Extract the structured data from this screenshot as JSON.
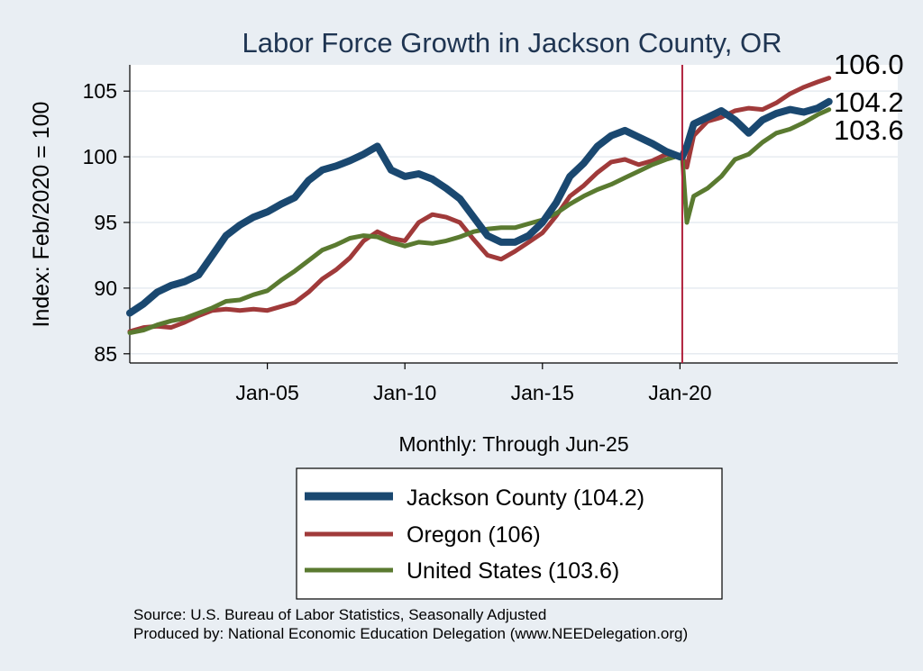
{
  "chart_data": {
    "type": "line",
    "title": "Labor Force Growth in Jackson  County, OR",
    "ylabel": "Index: Feb/2020 = 100",
    "xlabel": "Monthly: Through Jun-25",
    "xlim": [
      "Jan-00",
      "Dec-27"
    ],
    "ylim": [
      84.3,
      107
    ],
    "y_ticks": [
      85,
      90,
      95,
      100,
      105
    ],
    "x_ticks": [
      "Jan-05",
      "Jan-10",
      "Jan-15",
      "Jan-20"
    ],
    "grid": "horizontal",
    "reference_line": {
      "date": "Feb-20",
      "color": "#b0213d"
    },
    "legend_position": "bottom",
    "end_labels": [
      "106.0",
      "104.2",
      "103.6"
    ],
    "series": [
      {
        "name": "Jackson  County (104.2)",
        "color": "#1a4870",
        "points": [
          [
            "Jan-00",
            88.1
          ],
          [
            "Jul-00",
            88.8
          ],
          [
            "Jan-01",
            89.7
          ],
          [
            "Jul-01",
            90.2
          ],
          [
            "Jan-02",
            90.5
          ],
          [
            "Jul-02",
            91.0
          ],
          [
            "Jan-03",
            92.5
          ],
          [
            "Jul-03",
            94.0
          ],
          [
            "Jan-04",
            94.8
          ],
          [
            "Jul-04",
            95.4
          ],
          [
            "Jan-05",
            95.8
          ],
          [
            "Jul-05",
            96.4
          ],
          [
            "Jan-06",
            96.9
          ],
          [
            "Jul-06",
            98.2
          ],
          [
            "Jan-07",
            99.0
          ],
          [
            "Jul-07",
            99.3
          ],
          [
            "Jan-08",
            99.7
          ],
          [
            "Jul-08",
            100.2
          ],
          [
            "Jan-09",
            100.8
          ],
          [
            "Jul-09",
            99.0
          ],
          [
            "Jan-10",
            98.5
          ],
          [
            "Jul-10",
            98.7
          ],
          [
            "Jan-11",
            98.3
          ],
          [
            "Jul-11",
            97.6
          ],
          [
            "Jan-12",
            96.8
          ],
          [
            "Jul-12",
            95.4
          ],
          [
            "Jan-13",
            94.0
          ],
          [
            "Jul-13",
            93.5
          ],
          [
            "Jan-14",
            93.5
          ],
          [
            "Jul-14",
            94.0
          ],
          [
            "Jan-15",
            95.0
          ],
          [
            "Jul-15",
            96.5
          ],
          [
            "Jan-16",
            98.5
          ],
          [
            "Jul-16",
            99.5
          ],
          [
            "Jan-17",
            100.8
          ],
          [
            "Jul-17",
            101.6
          ],
          [
            "Jan-18",
            102.0
          ],
          [
            "Jul-18",
            101.5
          ],
          [
            "Jan-19",
            101.0
          ],
          [
            "Jul-19",
            100.4
          ],
          [
            "Jan-20",
            100.0
          ],
          [
            "Feb-20",
            100.0
          ],
          [
            "Apr-20",
            100.8
          ],
          [
            "Jul-20",
            102.5
          ],
          [
            "Jan-21",
            103.0
          ],
          [
            "Jul-21",
            103.5
          ],
          [
            "Jan-22",
            102.8
          ],
          [
            "Jul-22",
            101.8
          ],
          [
            "Jan-23",
            102.8
          ],
          [
            "Jul-23",
            103.3
          ],
          [
            "Jan-24",
            103.6
          ],
          [
            "Jul-24",
            103.4
          ],
          [
            "Jan-25",
            103.7
          ],
          [
            "Jun-25",
            104.2
          ]
        ]
      },
      {
        "name": "Oregon (106)",
        "color": "#a03a3a",
        "points": [
          [
            "Jan-00",
            86.7
          ],
          [
            "Jul-00",
            87.0
          ],
          [
            "Jan-01",
            87.1
          ],
          [
            "Jul-01",
            87.0
          ],
          [
            "Jan-02",
            87.4
          ],
          [
            "Jul-02",
            87.9
          ],
          [
            "Jan-03",
            88.3
          ],
          [
            "Jul-03",
            88.4
          ],
          [
            "Jan-04",
            88.3
          ],
          [
            "Jul-04",
            88.4
          ],
          [
            "Jan-05",
            88.3
          ],
          [
            "Jul-05",
            88.6
          ],
          [
            "Jan-06",
            88.9
          ],
          [
            "Jul-06",
            89.7
          ],
          [
            "Jan-07",
            90.7
          ],
          [
            "Jul-07",
            91.4
          ],
          [
            "Jan-08",
            92.3
          ],
          [
            "Jul-08",
            93.6
          ],
          [
            "Jan-09",
            94.3
          ],
          [
            "Jul-09",
            93.8
          ],
          [
            "Jan-10",
            93.6
          ],
          [
            "Jul-10",
            95.0
          ],
          [
            "Jan-11",
            95.6
          ],
          [
            "Jul-11",
            95.4
          ],
          [
            "Jan-12",
            95.0
          ],
          [
            "Jul-12",
            93.7
          ],
          [
            "Jan-13",
            92.5
          ],
          [
            "Jul-13",
            92.2
          ],
          [
            "Jan-14",
            92.8
          ],
          [
            "Jul-14",
            93.5
          ],
          [
            "Jan-15",
            94.2
          ],
          [
            "Jul-15",
            95.5
          ],
          [
            "Jan-16",
            97.0
          ],
          [
            "Jul-16",
            97.8
          ],
          [
            "Jan-17",
            98.8
          ],
          [
            "Jul-17",
            99.6
          ],
          [
            "Jan-18",
            99.8
          ],
          [
            "Jul-18",
            99.4
          ],
          [
            "Jan-19",
            99.7
          ],
          [
            "Jul-19",
            100.2
          ],
          [
            "Jan-20",
            100.1
          ],
          [
            "Feb-20",
            100.0
          ],
          [
            "Apr-20",
            99.2
          ],
          [
            "Jul-20",
            101.6
          ],
          [
            "Jan-21",
            102.7
          ],
          [
            "Jul-21",
            103.0
          ],
          [
            "Jan-22",
            103.5
          ],
          [
            "Jul-22",
            103.7
          ],
          [
            "Jan-23",
            103.6
          ],
          [
            "Jul-23",
            104.1
          ],
          [
            "Jan-24",
            104.8
          ],
          [
            "Jul-24",
            105.3
          ],
          [
            "Jan-25",
            105.7
          ],
          [
            "Jun-25",
            106.0
          ]
        ]
      },
      {
        "name": "United States (103.6)",
        "color": "#5a7a30",
        "points": [
          [
            "Jan-00",
            86.6
          ],
          [
            "Jul-00",
            86.8
          ],
          [
            "Jan-01",
            87.2
          ],
          [
            "Jul-01",
            87.5
          ],
          [
            "Jan-02",
            87.7
          ],
          [
            "Jul-02",
            88.1
          ],
          [
            "Jan-03",
            88.5
          ],
          [
            "Jul-03",
            89.0
          ],
          [
            "Jan-04",
            89.1
          ],
          [
            "Jul-04",
            89.5
          ],
          [
            "Jan-05",
            89.8
          ],
          [
            "Jul-05",
            90.6
          ],
          [
            "Jan-06",
            91.3
          ],
          [
            "Jul-06",
            92.1
          ],
          [
            "Jan-07",
            92.9
          ],
          [
            "Jul-07",
            93.3
          ],
          [
            "Jan-08",
            93.8
          ],
          [
            "Jul-08",
            94.0
          ],
          [
            "Jan-09",
            93.9
          ],
          [
            "Jul-09",
            93.5
          ],
          [
            "Jan-10",
            93.2
          ],
          [
            "Jul-10",
            93.5
          ],
          [
            "Jan-11",
            93.4
          ],
          [
            "Jul-11",
            93.6
          ],
          [
            "Jan-12",
            93.9
          ],
          [
            "Jul-12",
            94.3
          ],
          [
            "Jan-13",
            94.5
          ],
          [
            "Jul-13",
            94.6
          ],
          [
            "Jan-14",
            94.6
          ],
          [
            "Jul-14",
            94.9
          ],
          [
            "Jan-15",
            95.2
          ],
          [
            "Jul-15",
            95.7
          ],
          [
            "Jan-16",
            96.4
          ],
          [
            "Jul-16",
            97.0
          ],
          [
            "Jan-17",
            97.5
          ],
          [
            "Jul-17",
            97.9
          ],
          [
            "Jan-18",
            98.4
          ],
          [
            "Jul-18",
            98.9
          ],
          [
            "Jan-19",
            99.4
          ],
          [
            "Jul-19",
            99.8
          ],
          [
            "Jan-20",
            100.1
          ],
          [
            "Feb-20",
            100.0
          ],
          [
            "Apr-20",
            95.0
          ],
          [
            "Jul-20",
            97.0
          ],
          [
            "Jan-21",
            97.6
          ],
          [
            "Jul-21",
            98.5
          ],
          [
            "Jan-22",
            99.8
          ],
          [
            "Jul-22",
            100.2
          ],
          [
            "Jan-23",
            101.1
          ],
          [
            "Jul-23",
            101.8
          ],
          [
            "Jan-24",
            102.1
          ],
          [
            "Jul-24",
            102.6
          ],
          [
            "Jan-25",
            103.2
          ],
          [
            "Jun-25",
            103.6
          ]
        ]
      }
    ]
  },
  "footer": {
    "source": "Source: U.S. Bureau of Labor Statistics, Seasonally Adjusted",
    "produced": "Produced by: National Economic Education Delegation (www.NEEDelegation.org)"
  }
}
